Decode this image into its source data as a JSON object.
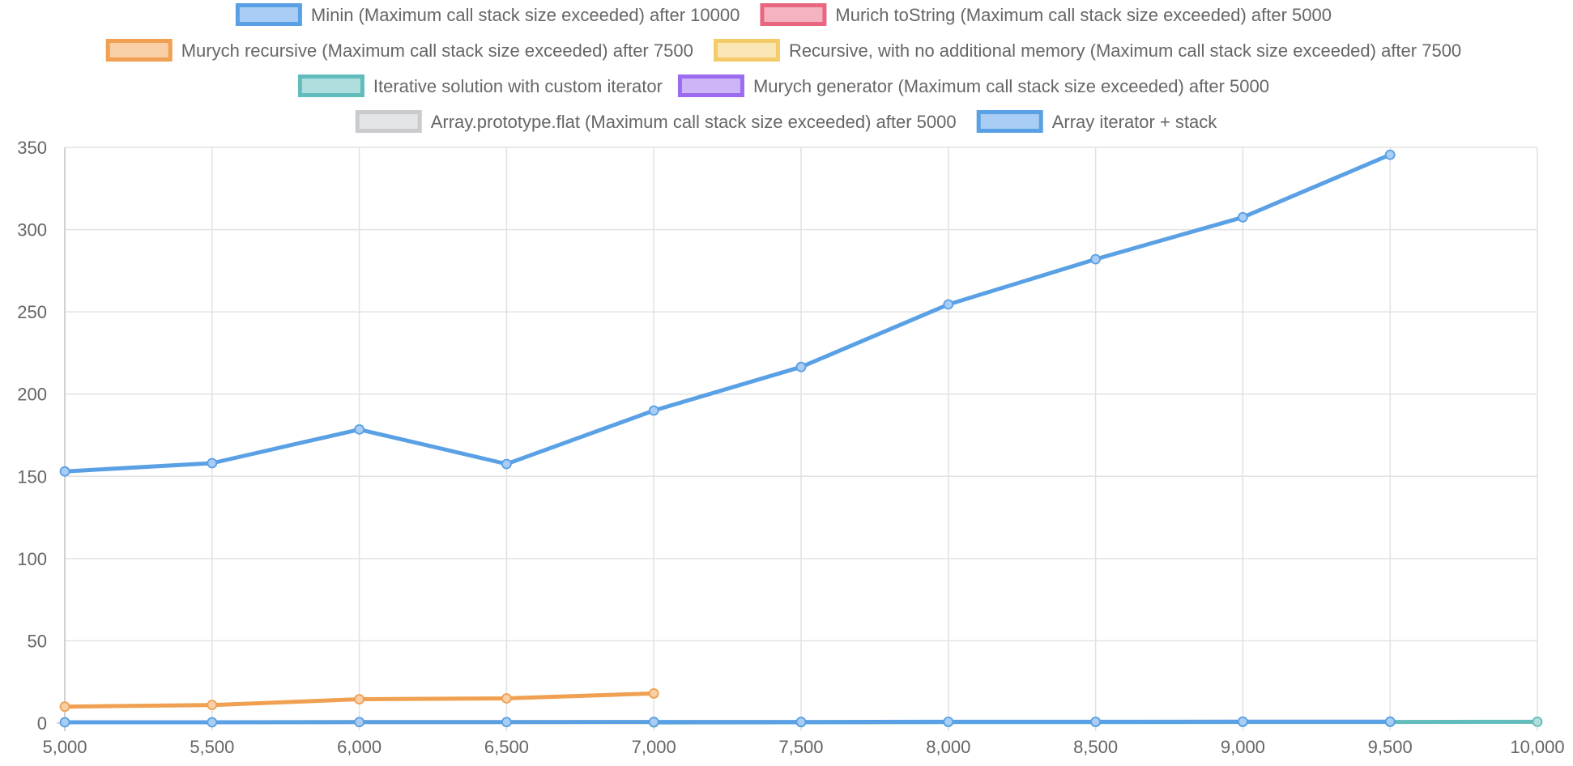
{
  "chart_data": {
    "type": "line",
    "title": "",
    "xlabel": "",
    "ylabel": "",
    "x": [
      5000,
      5500,
      6000,
      6500,
      7000,
      7500,
      8000,
      8500,
      9000,
      9500,
      10000
    ],
    "x_tick_labels": [
      "5,000",
      "5,500",
      "6,000",
      "6,500",
      "7,000",
      "7,500",
      "8,000",
      "8,500",
      "9,000",
      "9,500",
      "10,000"
    ],
    "xlim": [
      5000,
      10000
    ],
    "y_ticks": [
      0,
      50,
      100,
      150,
      200,
      250,
      300,
      350
    ],
    "y_tick_labels": [
      "0",
      "50",
      "100",
      "150",
      "200",
      "250",
      "300",
      "350"
    ],
    "ylim": [
      0,
      350
    ],
    "grid": true,
    "legend_position": "top",
    "series": [
      {
        "name": "Minin (Maximum call stack size exceeded) after  10000",
        "color": "#5aa0e4",
        "fill": "#a9cdf4",
        "x": [
          5000,
          5500,
          6000,
          6500,
          7000,
          7500,
          8000,
          8500,
          9000,
          9500
        ],
        "values": [
          0.5,
          0.5,
          0.6,
          0.6,
          0.7,
          0.7,
          0.8,
          0.8,
          0.9,
          0.9
        ]
      },
      {
        "name": "Murich toString (Maximum call stack size exceeded) after  5000",
        "color": "#e8667f",
        "fill": "#f4b3c0",
        "x": [],
        "values": []
      },
      {
        "name": "Murych recursive (Maximum call stack size exceeded) after  7500",
        "color": "#f0a050",
        "fill": "#f8cfa7",
        "x": [
          5000,
          5500,
          6000,
          6500,
          7000
        ],
        "values": [
          10,
          11,
          14.5,
          15,
          18
        ]
      },
      {
        "name": "Recursive, with no additional memory (Maximum call stack size exceeded) after  7500",
        "color": "#f5cb6a",
        "fill": "#fae5b4",
        "x": [
          5000,
          5500,
          6000,
          6500,
          7000
        ],
        "values": [
          0.5,
          0.5,
          0.6,
          0.6,
          0.6
        ]
      },
      {
        "name": "Iterative solution with custom iterator",
        "color": "#62bcbc",
        "fill": "#b0dede",
        "x": [
          7000,
          7500,
          8000,
          8500,
          9000,
          9500,
          10000
        ],
        "values": [
          0.4,
          0.5,
          0.6,
          0.6,
          0.7,
          0.7,
          0.8
        ]
      },
      {
        "name": "Murych generator (Maximum call stack size exceeded) after  5000",
        "color": "#9b6bf0",
        "fill": "#cdb5f8",
        "x": [],
        "values": []
      },
      {
        "name": "Array.prototype.flat (Maximum call stack size exceeded) after  5000",
        "color": "#c9cbcf",
        "fill": "#e4e5e7",
        "x": [],
        "values": []
      },
      {
        "name": "Array iterator + stack",
        "color": "#5aa0e4",
        "fill": "#a9cdf4",
        "x": [
          5000,
          5500,
          6000,
          6500,
          7000,
          7500,
          8000,
          8500,
          9000,
          9500
        ],
        "values": [
          153,
          158,
          178.5,
          157.5,
          190,
          216.5,
          254.5,
          282,
          307.5,
          345.5
        ]
      }
    ]
  }
}
